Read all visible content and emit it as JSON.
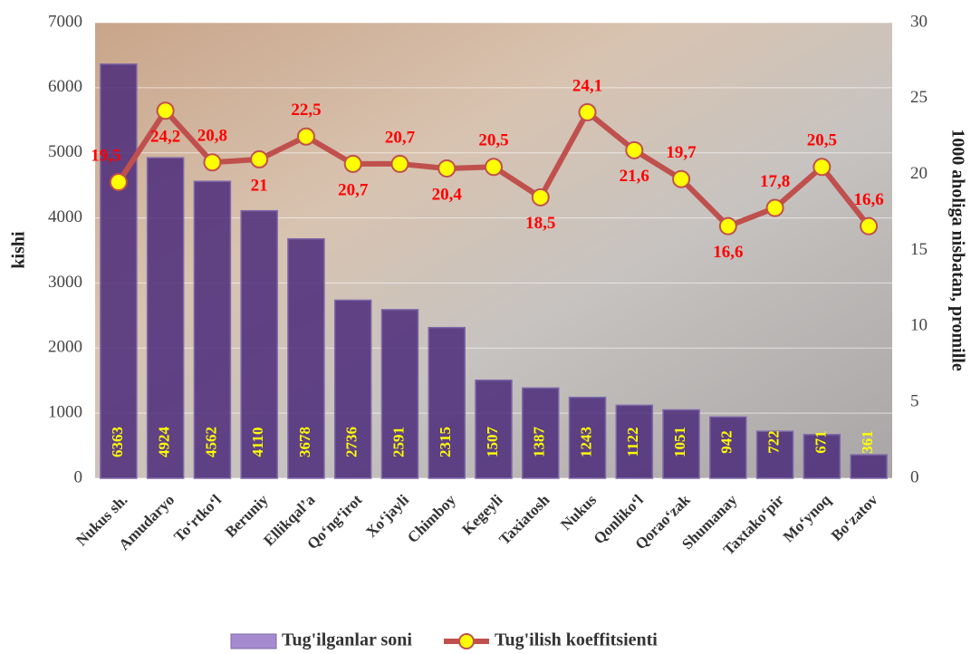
{
  "chart_data": {
    "type": "bar-line",
    "categories": [
      "Nukus sh.",
      "Amudaryo",
      "To‘rtko‘l",
      "Beruniy",
      "Ellikqal’a",
      "Qo‘ng‘irot",
      "Xo‘jayli",
      "Chimboy",
      "Kegeyli",
      "Taxiatosh",
      "Nukus",
      "Qonliko‘l",
      "Qorao‘zak",
      "Shumanay",
      "Taxtako‘pir",
      "Mo‘ynoq",
      "Bo‘zatov"
    ],
    "series": [
      {
        "name": "Tug'ilganlar soni",
        "type": "bar",
        "color": "#4b2a7a",
        "values": [
          6363,
          4924,
          4562,
          4110,
          3678,
          2736,
          2591,
          2315,
          1507,
          1387,
          1243,
          1122,
          1051,
          942,
          722,
          671,
          361
        ]
      },
      {
        "name": "Tug'ilish koeffitsienti",
        "type": "line",
        "axis": "y2",
        "color": "#c0504d",
        "marker_color": "#ffff00",
        "values": [
          19.5,
          24.2,
          20.8,
          21,
          22.5,
          20.7,
          20.7,
          20.4,
          20.5,
          18.5,
          24.1,
          21.6,
          19.7,
          16.6,
          17.8,
          20.5,
          16.6
        ],
        "value_labels": [
          "19,5",
          "24,2",
          "20,8",
          "21",
          "22,5",
          "20,7",
          "20,7",
          "20,4",
          "20,5",
          "18,5",
          "24,1",
          "21,6",
          "19,7",
          "16,6",
          "17,8",
          "20,5",
          "16,6"
        ]
      }
    ],
    "ylabel": "kishi",
    "y2label": "1000 aholiga nisbatan, promille",
    "ylim": [
      0,
      7000
    ],
    "yticks": [
      0,
      1000,
      2000,
      3000,
      4000,
      5000,
      6000,
      7000
    ],
    "y2lim": [
      0,
      30
    ],
    "y2ticks": [
      0,
      5,
      10,
      15,
      20,
      25,
      30
    ],
    "grid": true,
    "legend": "bottom"
  }
}
